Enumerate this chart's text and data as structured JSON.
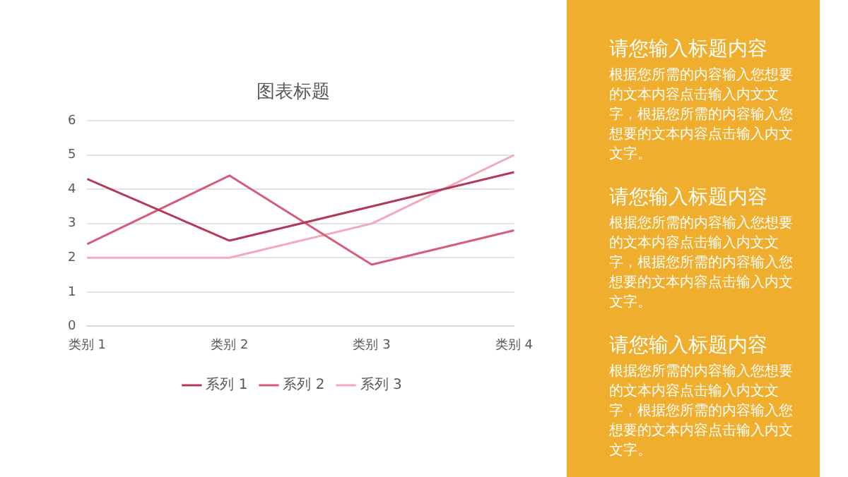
{
  "chart_data": [
    {
      "type": "line",
      "title": "图表标题",
      "categories": [
        "类别 1",
        "类别 2",
        "类别 3",
        "类别 4"
      ],
      "series": [
        {
          "name": "系列 1",
          "color": "#b23a56",
          "values": [
            4.3,
            2.5,
            3.5,
            4.5
          ]
        },
        {
          "name": "系列 2",
          "color": "#d65d7a",
          "values": [
            2.4,
            4.4,
            1.8,
            2.8
          ]
        },
        {
          "name": "系列 3",
          "color": "#f2a9ba",
          "values": [
            2,
            2,
            3,
            5
          ]
        }
      ],
      "ylim": [
        0,
        6
      ],
      "yticks": [
        0,
        1,
        2,
        3,
        4,
        5,
        6
      ],
      "grid": "y",
      "legend": "bottom",
      "marker": "none",
      "line_style": "solid"
    },
    {
      "type": "other",
      "annotations": [
        "请您输入标题内容",
        "根据您所需的内容输入您想要的文本内容点击输入内文文字，根据您所需的内容输入您想要的文本内容点击输入内文文字。",
        "请您输入标题内容",
        "根据您所需的内容输入您想要的文本内容点击输入内文文字，根据您所需的内容输入您想要的文本内容点击输入内文文字。",
        "请您输入标题内容",
        "根据您所需的内容输入您想要的文本内容点击输入内文文字，根据您所需的内容输入您想要的文本内容点击输入内文文字。"
      ]
    }
  ]
}
